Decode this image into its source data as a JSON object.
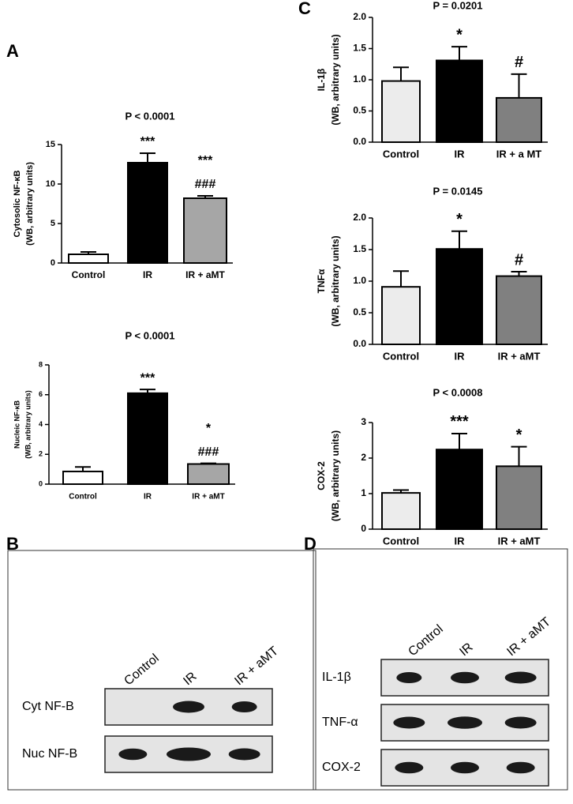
{
  "panel_labels": [
    "A",
    "B",
    "C",
    "D"
  ],
  "blot_B": {
    "columns": [
      "Control",
      "IR",
      "IR + aMT"
    ],
    "rows": [
      "Cyt NF-B",
      "Nuc NF-B"
    ]
  },
  "blot_D": {
    "columns": [
      "Control",
      "IR",
      "IR + aMT"
    ],
    "rows": [
      "IL-1β",
      "TNF-α",
      "COX-2"
    ]
  },
  "chart_data": [
    {
      "type": "bar",
      "title": "P < 0.0001",
      "ylabel": [
        "Cytosolic NF-κB",
        "(WB, arbitrary units)"
      ],
      "categories": [
        "Control",
        "IR",
        "IR + aMT"
      ],
      "values": [
        1.1,
        12.7,
        8.2
      ],
      "errors": [
        0.3,
        1.2,
        0.3
      ],
      "colors": [
        "#ffffff",
        "#000000",
        "#a6a6a6"
      ],
      "ylim": [
        0,
        15
      ],
      "yticks": [
        0,
        5,
        10,
        15
      ],
      "annotations": [
        {
          "bar": 1,
          "texts": [
            "***"
          ]
        },
        {
          "bar": 2,
          "texts": [
            "***",
            "###"
          ]
        }
      ]
    },
    {
      "type": "bar",
      "title": "P < 0.0001",
      "ylabel": [
        "Nucleic NF-κB",
        "(WB, arbitrary units)"
      ],
      "categories": [
        "Control",
        "IR",
        "IR + aMT"
      ],
      "values": [
        0.85,
        6.1,
        1.35
      ],
      "errors": [
        0.3,
        0.25,
        0.05
      ],
      "colors": [
        "#ffffff",
        "#000000",
        "#a6a6a6"
      ],
      "ylim": [
        0,
        8
      ],
      "yticks": [
        0,
        2,
        4,
        6,
        8
      ],
      "annotations": [
        {
          "bar": 1,
          "texts": [
            "***"
          ]
        },
        {
          "bar": 2,
          "texts": [
            "*",
            "###"
          ]
        }
      ]
    },
    {
      "type": "bar",
      "title": "P = 0.0201",
      "ylabel": [
        "IL-1β",
        "(WB, arbitrary units)"
      ],
      "categories": [
        "Control",
        "IR",
        "IR + a MT"
      ],
      "values": [
        0.98,
        1.31,
        0.71
      ],
      "errors": [
        0.22,
        0.22,
        0.38
      ],
      "colors": [
        "#ececec",
        "#000000",
        "#808080"
      ],
      "ylim": [
        0,
        2
      ],
      "yticks": [
        {
          "value": 0,
          "label": "0.0"
        },
        0.5,
        {
          "value": 1,
          "label": "1.0"
        },
        1.5,
        {
          "value": 2,
          "label": "2.0"
        }
      ],
      "annotations": [
        {
          "bar": 1,
          "texts": [
            "*"
          ]
        },
        {
          "bar": 2,
          "texts": [
            "#"
          ]
        }
      ]
    },
    {
      "type": "bar",
      "title": "P = 0.0145",
      "ylabel": [
        "TNFα",
        "(WB, arbitrary units)"
      ],
      "categories": [
        "Control",
        "IR",
        "IR + aMT"
      ],
      "values": [
        0.91,
        1.51,
        1.08
      ],
      "errors": [
        0.25,
        0.28,
        0.07
      ],
      "colors": [
        "#ececec",
        "#000000",
        "#808080"
      ],
      "ylim": [
        0,
        2
      ],
      "yticks": [
        {
          "value": 0,
          "label": "0.0"
        },
        0.5,
        {
          "value": 1,
          "label": "1.0"
        },
        1.5,
        {
          "value": 2,
          "label": "2.0"
        }
      ],
      "annotations": [
        {
          "bar": 1,
          "texts": [
            "*"
          ]
        },
        {
          "bar": 2,
          "texts": [
            "#"
          ]
        }
      ]
    },
    {
      "type": "bar",
      "title": "P < 0.0008",
      "ylabel": [
        "COX-2",
        "(WB, arbitrary units)"
      ],
      "categories": [
        "Control",
        "IR",
        "IR + aMT"
      ],
      "values": [
        1.02,
        2.24,
        1.77
      ],
      "errors": [
        0.08,
        0.45,
        0.55
      ],
      "colors": [
        "#ececec",
        "#000000",
        "#808080"
      ],
      "ylim": [
        0,
        3
      ],
      "yticks": [
        0,
        1,
        2,
        3
      ],
      "annotations": [
        {
          "bar": 1,
          "texts": [
            "***"
          ]
        },
        {
          "bar": 2,
          "texts": [
            "*"
          ]
        }
      ]
    }
  ]
}
